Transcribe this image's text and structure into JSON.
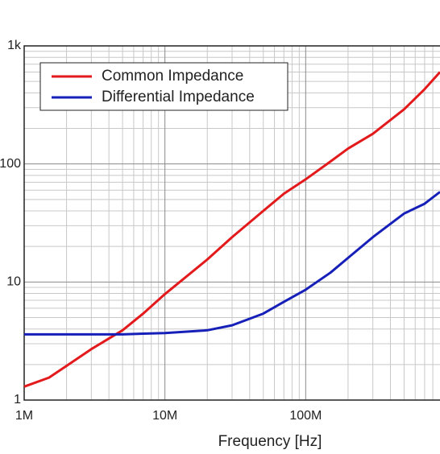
{
  "chart_data": {
    "type": "line",
    "log_x": true,
    "log_y": true,
    "grid": true,
    "legend": "upper left",
    "xlabel": "Frequency [Hz]",
    "xlim": [
      1000000,
      900000000
    ],
    "ylim": [
      1,
      1000
    ],
    "xticks": [
      {
        "value": 1000000,
        "label": "1M"
      },
      {
        "value": 10000000,
        "label": "10M"
      },
      {
        "value": 100000000,
        "label": "100M"
      }
    ],
    "yticks": [
      1,
      10,
      100,
      {
        "value": 1000,
        "label": "1k"
      }
    ],
    "x": [
      1000000,
      1500000,
      2000000,
      3000000,
      5000000,
      7000000,
      10000000,
      20000000,
      30000000,
      50000000,
      70000000,
      100000000,
      150000000,
      200000000,
      300000000,
      500000000,
      700000000,
      900000000
    ],
    "series": [
      {
        "name": "Common Impedance",
        "color": "#e31a1c",
        "values": [
          1.3,
          1.55,
          1.95,
          2.7,
          3.9,
          5.4,
          7.9,
          15.5,
          24,
          40,
          56,
          74,
          105,
          135,
          180,
          290,
          430,
          600
        ]
      },
      {
        "name": "Differential Impedance",
        "color": "#1620b8",
        "values": [
          3.6,
          3.6,
          3.6,
          3.6,
          3.6,
          3.65,
          3.7,
          3.9,
          4.3,
          5.4,
          6.8,
          8.6,
          12,
          16,
          24,
          38,
          46,
          58
        ]
      }
    ]
  }
}
